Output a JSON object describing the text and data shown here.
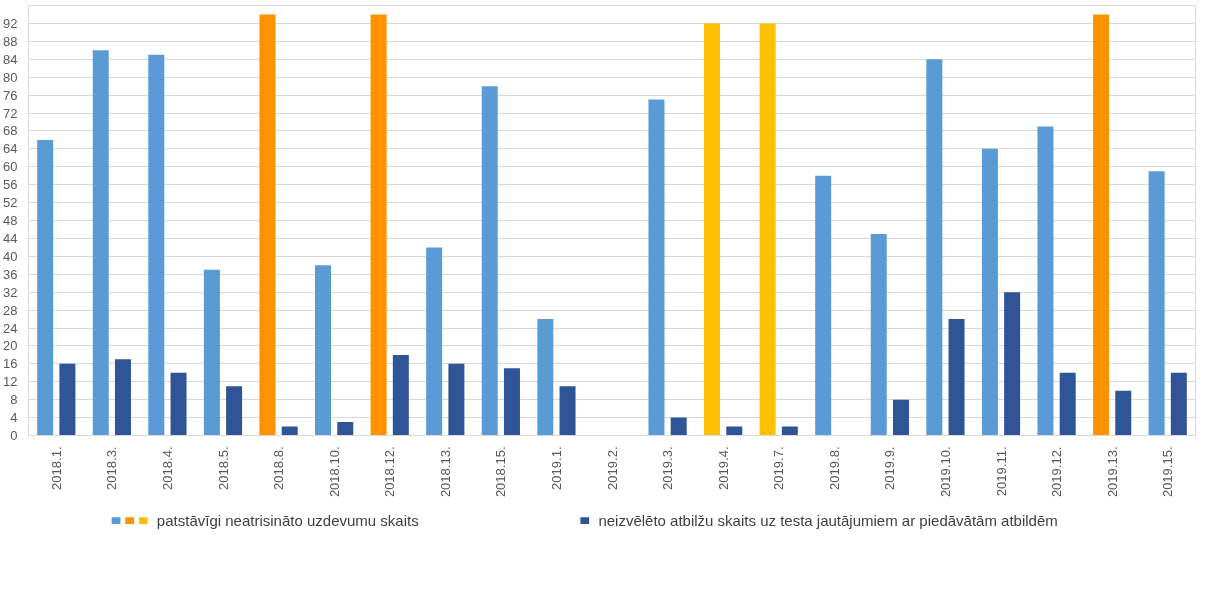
{
  "chart_data": {
    "type": "bar",
    "categories": [
      "2018.1.",
      "2018.3.",
      "2018.4.",
      "2018.5.",
      "2018.8.",
      "2018.10.",
      "2018.12.",
      "2018.13.",
      "2018.15.",
      "2019.1.",
      "2019.2.",
      "2019.3.",
      "2019.4.",
      "2019.7.",
      "2019.8.",
      "2019.9.",
      "2019.10.",
      "2019.11.",
      "2019.12.",
      "2019.13.",
      "2019.15."
    ],
    "series": [
      {
        "name": "patstāvīgi neatrisināto uzdevumu skaits",
        "color": "#5b9bd5",
        "colors": [
          "#5b9bd5",
          "#5b9bd5",
          "#5b9bd5",
          "#5b9bd5",
          "#ff9200",
          "#5b9bd5",
          "#ff9200",
          "#5b9bd5",
          "#5b9bd5",
          "#5b9bd5",
          "#5b9bd5",
          "#5b9bd5",
          "#ffc000",
          "#ffc000",
          "#5b9bd5",
          "#5b9bd5",
          "#5b9bd5",
          "#5b9bd5",
          "#5b9bd5",
          "#ff9200",
          "#5b9bd5"
        ],
        "values": [
          66,
          86,
          85,
          37,
          94,
          38,
          94,
          42,
          78,
          26,
          null,
          75,
          92,
          92,
          58,
          45,
          84,
          64,
          69,
          94,
          59
        ]
      },
      {
        "name": "neizvēlēto atbilžu skaits uz testa jautājumiem ar piedāvātām atbildēm",
        "color": "#2f5597",
        "values": [
          16,
          17,
          14,
          11,
          2,
          3,
          18,
          16,
          15,
          11,
          null,
          4,
          2,
          2,
          null,
          8,
          26,
          32,
          14,
          10,
          14
        ]
      }
    ],
    "ylim": [
      0,
      96
    ],
    "yticks": [
      0,
      4,
      8,
      12,
      16,
      20,
      24,
      28,
      32,
      36,
      40,
      44,
      48,
      52,
      56,
      60,
      64,
      68,
      72,
      76,
      80,
      84,
      88,
      92
    ],
    "grid": "y",
    "legend": "bottom"
  }
}
